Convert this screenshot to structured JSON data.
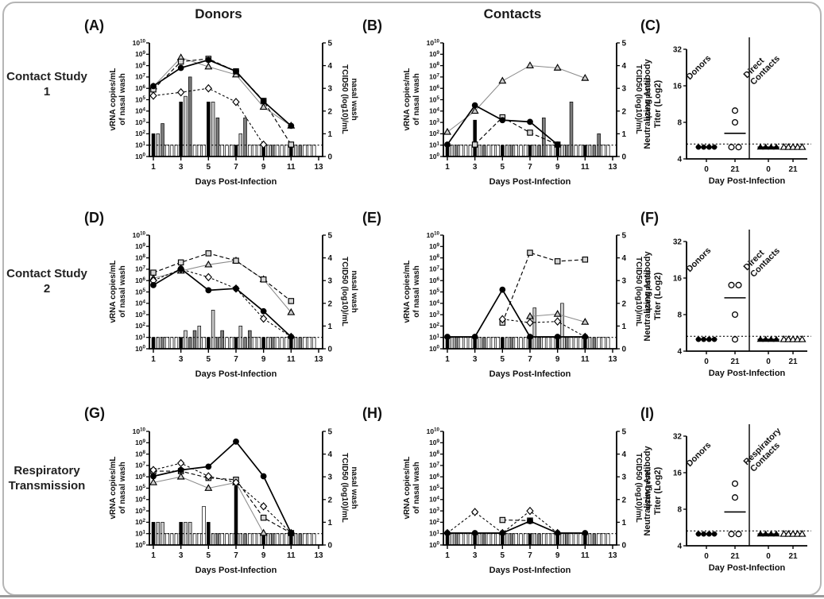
{
  "chart_data": {
    "type": "multi-panel line+bar+scatter figure",
    "col_headers": [
      "Donors",
      "Contacts"
    ],
    "row_labels": [
      "Contact Study 1",
      "Contact Study 2",
      "Respiratory Transmission"
    ],
    "timecourse_axes": {
      "ylabel_left": [
        "vRNA copies/mL",
        "of nasal wash"
      ],
      "ylabel_right": [
        "TCID50 (log10)/mL",
        "nasal wash"
      ],
      "xlabel": "Days Post-Infection",
      "x_ticks": [
        1,
        3,
        5,
        7,
        9,
        11,
        13
      ],
      "left_log_range": [
        0,
        10
      ],
      "right_range": [
        0,
        5
      ],
      "lod_log10": 1
    },
    "titer_axes": {
      "ylabel": [
        "Neutralizing Antibody",
        "Titer (Log2)"
      ],
      "xlabel": "Day Post-Infection",
      "y_ticks": [
        4,
        8,
        16,
        32
      ],
      "x_tick_labels": [
        "0",
        "21",
        "0",
        "21"
      ],
      "lod": 5.3
    },
    "bar_colors": {
      "k": "#000000",
      "l": "#c9c9c9",
      "d": "#7b7b7b",
      "w": "#ffffff"
    },
    "bar_pattern": [
      "k",
      "l",
      "d",
      "w",
      "w",
      "w"
    ],
    "bar_baseline": 0.5,
    "marker_styles": {
      "circle": {
        "mfill": "#000000",
        "stroke": "#000000",
        "w": 1.7,
        "dash": ""
      },
      "square": {
        "mfill": "#d6d6d6",
        "stroke": "#000000",
        "w": 1.15,
        "dash": "5,3"
      },
      "triangle": {
        "mfill": "#cdcdcd",
        "stroke": "#8a8a8a",
        "w": 1.05,
        "dash": ""
      },
      "diamond": {
        "mfill": "#ffffff",
        "stroke": "#000000",
        "w": 1.05,
        "dash": "3,2.6"
      }
    },
    "panels": {
      "A": {
        "letter": "(A)",
        "type": "timecourse",
        "series": [
          {
            "marker": "triangle",
            "x": [
              1,
              3,
              5,
              7,
              9,
              11
            ],
            "y": [
              6.15,
              8.7,
              7.9,
              7.2,
              4.35,
              2.7
            ]
          },
          {
            "marker": "square",
            "x": [
              1,
              3,
              5,
              7,
              9,
              11
            ],
            "y": [
              5.9,
              8.35,
              8.6,
              7.5,
              4.9,
              1.05
            ]
          },
          {
            "marker": "diamond",
            "x": [
              1,
              3,
              5,
              7,
              9
            ],
            "y": [
              5.35,
              5.65,
              6.0,
              4.8,
              1.05
            ]
          },
          {
            "marker": "circle",
            "x": [
              1,
              3,
              5,
              7,
              9,
              11
            ],
            "y": [
              6.2,
              7.8,
              8.5,
              7.5,
              4.85,
              2.7
            ]
          }
        ],
        "bar_overrides": [
          [
            0,
            1.0
          ],
          [
            1,
            1.0
          ],
          [
            2,
            1.45
          ],
          [
            6,
            2.4
          ],
          [
            7,
            2.65
          ],
          [
            8,
            3.5
          ],
          [
            12,
            2.4
          ],
          [
            13,
            2.4
          ],
          [
            14,
            1.7
          ],
          [
            19,
            1.0
          ],
          [
            20,
            1.7
          ]
        ]
      },
      "B": {
        "letter": "(B)",
        "type": "timecourse",
        "series": [
          {
            "marker": "triangle",
            "x": [
              1,
              3,
              5,
              7,
              9,
              11
            ],
            "y": [
              2.15,
              4.0,
              6.65,
              8.0,
              7.8,
              6.9
            ]
          },
          {
            "marker": "square",
            "x": [
              3,
              5,
              7,
              9
            ],
            "y": [
              1.05,
              3.45,
              2.1,
              1.05
            ]
          },
          {
            "marker": "circle",
            "x": [
              1,
              3,
              5,
              7,
              9
            ],
            "y": [
              1.05,
              4.5,
              3.2,
              3.05,
              1.05
            ]
          }
        ],
        "bar_overrides": [
          [
            6,
            1.6
          ],
          [
            21,
            1.7,
            "d"
          ],
          [
            27,
            2.4,
            "d"
          ],
          [
            33,
            1.0,
            "d"
          ]
        ]
      },
      "C": {
        "letter": "(C)",
        "type": "titer",
        "groups": [
          {
            "label": [
              "Donors"
            ],
            "marker": "circle",
            "day0": [
              5,
              5,
              5,
              5
            ],
            "mean0": 5,
            "day21": [
              10,
              8,
              5,
              5
            ],
            "mean21": 6.5
          },
          {
            "label": [
              "Direct",
              "Contacts"
            ],
            "marker": "triangle",
            "day0": [
              5,
              5,
              5,
              5
            ],
            "mean0": 5,
            "day21": [
              5,
              5,
              5,
              5,
              5
            ],
            "mean21": 5
          }
        ]
      },
      "D": {
        "letter": "(D)",
        "type": "timecourse",
        "series": [
          {
            "marker": "triangle",
            "x": [
              1,
              3,
              5,
              7,
              9,
              11
            ],
            "y": [
              6.2,
              6.85,
              7.4,
              7.75,
              6.1,
              3.2
            ]
          },
          {
            "marker": "square",
            "x": [
              1,
              3,
              5,
              7,
              9,
              11
            ],
            "y": [
              6.7,
              7.6,
              8.4,
              7.75,
              6.1,
              4.2
            ]
          },
          {
            "marker": "diamond",
            "x": [
              1,
              3,
              5,
              7,
              9,
              11
            ],
            "y": [
              6.0,
              7.0,
              6.3,
              5.3,
              2.65,
              1.05
            ]
          },
          {
            "marker": "circle",
            "x": [
              1,
              3,
              5,
              7,
              9,
              11
            ],
            "y": [
              5.6,
              7.05,
              5.15,
              5.3,
              3.3,
              1.05
            ]
          }
        ],
        "bar_overrides": [
          [
            7,
            0.8
          ],
          [
            9,
            0.8,
            "d"
          ],
          [
            10,
            1.0,
            "l"
          ],
          [
            13,
            1.7
          ],
          [
            15,
            0.8,
            "d"
          ],
          [
            19,
            1.0
          ],
          [
            21,
            0.8,
            "d"
          ]
        ]
      },
      "E": {
        "letter": "(E)",
        "type": "timecourse",
        "series": [
          {
            "marker": "triangle",
            "x": [
              7,
              9,
              11
            ],
            "y": [
              2.85,
              3.05,
              2.35
            ]
          },
          {
            "marker": "square",
            "x": [
              5,
              7,
              9,
              11
            ],
            "y": [
              2.3,
              8.45,
              7.7,
              7.85
            ]
          },
          {
            "marker": "diamond",
            "x": [
              5,
              7,
              9,
              11
            ],
            "y": [
              2.6,
              2.3,
              2.4,
              1.05
            ]
          },
          {
            "marker": "circle",
            "x": [
              1,
              3,
              5,
              7,
              9,
              11
            ],
            "y": [
              1.05,
              1.05,
              5.2,
              1.05,
              1.05,
              1.05
            ]
          }
        ],
        "bar_overrides": [
          [
            19,
            1.8
          ],
          [
            25,
            2.0
          ]
        ]
      },
      "F": {
        "letter": "(F)",
        "type": "titer",
        "groups": [
          {
            "label": [
              "Donors"
            ],
            "marker": "circle",
            "day0": [
              5,
              5,
              5,
              5
            ],
            "mean0": 5,
            "day21": [
              14,
              14,
              8,
              5
            ],
            "mean21": 11
          },
          {
            "label": [
              "Direct",
              "Contacts"
            ],
            "marker": "triangle",
            "day0": [
              5,
              5,
              5,
              5
            ],
            "mean0": 5,
            "day21": [
              5,
              5,
              5,
              5,
              5
            ],
            "mean21": 5
          }
        ]
      },
      "G": {
        "letter": "(G)",
        "type": "timecourse",
        "series": [
          {
            "marker": "triangle",
            "x": [
              1,
              3,
              5,
              7,
              9
            ],
            "y": [
              5.5,
              6.0,
              5.0,
              5.5,
              1.05
            ]
          },
          {
            "marker": "square",
            "x": [
              1,
              3,
              5,
              7,
              9,
              11
            ],
            "y": [
              6.5,
              6.5,
              5.9,
              5.75,
              2.4,
              1.05
            ]
          },
          {
            "marker": "diamond",
            "x": [
              1,
              3,
              5,
              7,
              9,
              11
            ],
            "y": [
              6.6,
              7.2,
              6.05,
              5.5,
              3.4,
              1.05
            ]
          },
          {
            "marker": "circle",
            "x": [
              1,
              3,
              5,
              7,
              9,
              11
            ],
            "y": [
              6.05,
              6.6,
              6.9,
              9.1,
              6.05,
              1.05
            ]
          }
        ],
        "bar_overrides": [
          [
            0,
            1.0
          ],
          [
            1,
            1.0
          ],
          [
            2,
            1.0,
            "l"
          ],
          [
            6,
            1.0
          ],
          [
            7,
            1.0
          ],
          [
            8,
            1.0,
            "l"
          ],
          [
            11,
            1.7
          ],
          [
            12,
            1.0
          ],
          [
            18,
            2.6
          ]
        ]
      },
      "H": {
        "letter": "(H)",
        "type": "timecourse",
        "series": [
          {
            "marker": "diamond",
            "x": [
              1,
              3,
              5,
              7,
              9
            ],
            "y": [
              1.05,
              2.9,
              1.05,
              3.0,
              1.05
            ]
          },
          {
            "marker": "square",
            "x": [
              5,
              7
            ],
            "y": [
              2.2,
              2.15
            ]
          },
          {
            "marker": "circle",
            "x": [
              1,
              3,
              5,
              7,
              9,
              11
            ],
            "y": [
              1.05,
              1.05,
              1.05,
              2.1,
              1.05,
              1.05
            ]
          }
        ],
        "bar_overrides": []
      },
      "I": {
        "letter": "(I)",
        "type": "titer",
        "groups": [
          {
            "label": [
              "Donors"
            ],
            "marker": "circle",
            "day0": [
              5,
              5,
              5,
              5
            ],
            "mean0": 5,
            "day21": [
              13,
              10,
              5,
              5
            ],
            "mean21": 7.6
          },
          {
            "label": [
              "Respiratory",
              "Contacts"
            ],
            "marker": "triangle",
            "day0": [
              5,
              5,
              5,
              5
            ],
            "mean0": 5,
            "day21": [
              5,
              5,
              5,
              5,
              5
            ],
            "mean21": 5
          }
        ]
      }
    }
  }
}
